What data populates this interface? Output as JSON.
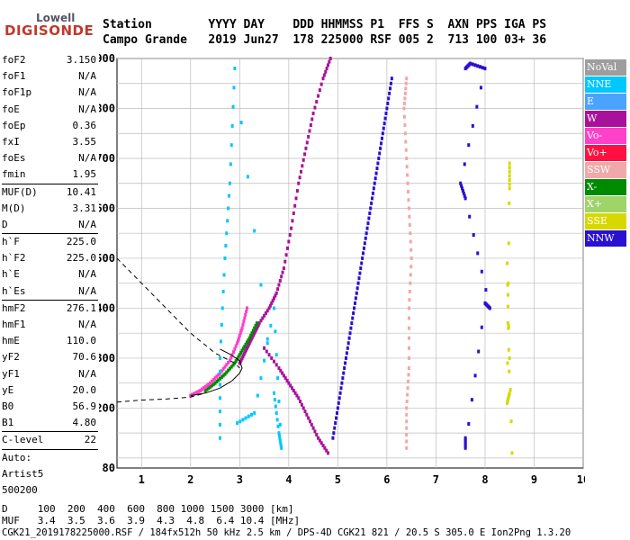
{
  "logo": {
    "line1": "Lowell",
    "line2": "DIGISONDE"
  },
  "header": {
    "labels": "Station        YYYY DAY    DDD HHMMSS P1  FFS S  AXN PPS IGA PS",
    "values": "Campo Grande   2019 Jun27  178 225000 RSF 005 2  713 100 03+ 36"
  },
  "params": [
    {
      "name": "foF2",
      "value": "3.150"
    },
    {
      "name": "foF1",
      "value": "N/A"
    },
    {
      "name": "foF1p",
      "value": "N/A"
    },
    {
      "name": "foE",
      "value": "N/A"
    },
    {
      "name": "foEp",
      "value": "0.36"
    },
    {
      "name": "fxI",
      "value": "3.55"
    },
    {
      "name": "foEs",
      "value": "N/A"
    },
    {
      "name": "fmin",
      "value": "1.95"
    },
    {
      "name": "MUF(D)",
      "value": "10.41"
    },
    {
      "name": "M(D)",
      "value": "3.31"
    },
    {
      "name": "D",
      "value": "N/A"
    },
    {
      "name": "h`F",
      "value": "225.0"
    },
    {
      "name": "h`F2",
      "value": "225.0"
    },
    {
      "name": "h`E",
      "value": "N/A"
    },
    {
      "name": "h`Es",
      "value": "N/A"
    },
    {
      "name": "hmF2",
      "value": "276.1"
    },
    {
      "name": "hmF1",
      "value": "N/A"
    },
    {
      "name": "hmE",
      "value": "110.0"
    },
    {
      "name": "yF2",
      "value": "70.6"
    },
    {
      "name": "yF1",
      "value": "N/A"
    },
    {
      "name": "yE",
      "value": "20.0"
    },
    {
      "name": "B0",
      "value": "56.9"
    },
    {
      "name": "B1",
      "value": "4.80"
    },
    {
      "name": "C-level",
      "value": "22"
    },
    {
      "name": "Auto:",
      "value": ""
    },
    {
      "name": "Artist5",
      "value": ""
    },
    {
      "name": "500200",
      "value": ""
    }
  ],
  "legend": [
    {
      "label": "NoVal",
      "color": "#9e9e9e"
    },
    {
      "label": "NNE",
      "color": "#00c8ff"
    },
    {
      "label": "E",
      "color": "#4aa3ff"
    },
    {
      "label": "W",
      "color": "#a8129a"
    },
    {
      "label": "Vo-",
      "color": "#ff40c8"
    },
    {
      "label": "Vo+",
      "color": "#ff1040"
    },
    {
      "label": "SSW",
      "color": "#f0a8a8"
    },
    {
      "label": "X-",
      "color": "#008a00"
    },
    {
      "label": "X+",
      "color": "#9ed46a"
    },
    {
      "label": "SSE",
      "color": "#d8d800"
    },
    {
      "label": "NNW",
      "color": "#2a10d0"
    }
  ],
  "chart_data": {
    "type": "scatter",
    "xlim": [
      0.5,
      10
    ],
    "ylim": [
      80,
      900
    ],
    "x_ticks": [
      "1",
      "2",
      "3",
      "4",
      "5",
      "6",
      "7",
      "8",
      "9",
      "10"
    ],
    "y_ticks": [
      "80",
      "200",
      "300",
      "400",
      "500",
      "600",
      "700",
      "800",
      "900"
    ],
    "grid": true,
    "traces": [
      {
        "name": "W",
        "color": "#a8129a",
        "points": [
          [
            3.0,
            290
          ],
          [
            3.1,
            310
          ],
          [
            3.2,
            330
          ],
          [
            3.3,
            350
          ],
          [
            3.4,
            370
          ],
          [
            3.6,
            400
          ],
          [
            3.75,
            430
          ],
          [
            3.9,
            480
          ],
          [
            4.05,
            560
          ],
          [
            4.2,
            650
          ],
          [
            4.35,
            720
          ],
          [
            4.5,
            790
          ],
          [
            4.7,
            860
          ],
          [
            4.85,
            900
          ]
        ]
      },
      {
        "name": "NNW",
        "color": "#2a10d0",
        "points": [
          [
            4.9,
            140
          ],
          [
            5.0,
            200
          ],
          [
            5.1,
            260
          ],
          [
            5.2,
            320
          ],
          [
            5.3,
            380
          ],
          [
            5.4,
            440
          ],
          [
            5.5,
            500
          ],
          [
            5.6,
            560
          ],
          [
            5.7,
            620
          ],
          [
            5.8,
            680
          ],
          [
            5.9,
            740
          ],
          [
            6.0,
            800
          ],
          [
            6.1,
            860
          ]
        ]
      },
      {
        "name": "X-",
        "color": "#008a00",
        "points": [
          [
            2.3,
            235
          ],
          [
            2.5,
            250
          ],
          [
            2.7,
            268
          ],
          [
            2.9,
            290
          ],
          [
            3.05,
            315
          ],
          [
            3.2,
            340
          ],
          [
            3.35,
            370
          ]
        ]
      },
      {
        "name": "Vo-",
        "color": "#ff40c8",
        "points": [
          [
            2.0,
            225
          ],
          [
            2.2,
            235
          ],
          [
            2.4,
            250
          ],
          [
            2.6,
            270
          ],
          [
            2.8,
            295
          ],
          [
            2.95,
            330
          ],
          [
            3.05,
            360
          ],
          [
            3.15,
            400
          ]
        ]
      },
      {
        "name": "NNE",
        "color": "#00c8ff",
        "points": [
          [
            2.6,
            140
          ],
          [
            2.6,
            300
          ],
          [
            2.7,
            500
          ],
          [
            2.8,
            650
          ],
          [
            2.9,
            880
          ],
          [
            3.7,
            230
          ],
          [
            3.8,
            150
          ],
          [
            3.85,
            120
          ],
          [
            3.7,
            400
          ],
          [
            3.3,
            190
          ],
          [
            2.95,
            170
          ]
        ]
      },
      {
        "name": "SSW",
        "color": "#f0a8a8",
        "points": [
          [
            6.4,
            120
          ],
          [
            6.4,
            200
          ],
          [
            6.45,
            280
          ],
          [
            6.45,
            400
          ],
          [
            6.5,
            500
          ],
          [
            6.45,
            600
          ],
          [
            6.4,
            700
          ],
          [
            6.35,
            800
          ],
          [
            6.4,
            860
          ]
        ]
      },
      {
        "name": "SSE",
        "color": "#d8d800",
        "points": [
          [
            8.5,
            640
          ],
          [
            8.5,
            690
          ],
          [
            8.45,
            210
          ],
          [
            8.5,
            230
          ],
          [
            8.45,
            490
          ],
          [
            8.55,
            110
          ]
        ]
      },
      {
        "name": "NNW-far",
        "color": "#2a10d0",
        "points": [
          [
            7.6,
            880
          ],
          [
            7.7,
            890
          ],
          [
            8.0,
            880
          ],
          [
            7.5,
            650
          ],
          [
            7.6,
            620
          ],
          [
            8.1,
            400
          ],
          [
            8.0,
            410
          ],
          [
            7.6,
            120
          ],
          [
            7.6,
            140
          ]
        ]
      },
      {
        "name": "W2",
        "color": "#a8129a",
        "points": [
          [
            3.5,
            320
          ],
          [
            3.8,
            280
          ],
          [
            4.0,
            250
          ],
          [
            4.2,
            220
          ],
          [
            4.4,
            180
          ],
          [
            4.6,
            140
          ],
          [
            4.8,
            110
          ]
        ]
      }
    ],
    "lines": [
      {
        "name": "profile-dashed",
        "style": "dashed",
        "points": [
          [
            0.5,
            500
          ],
          [
            1.0,
            450
          ],
          [
            1.5,
            400
          ],
          [
            2.0,
            350
          ],
          [
            2.5,
            310
          ],
          [
            2.9,
            290
          ],
          [
            3.0,
            280
          ]
        ]
      },
      {
        "name": "profile-dashed-low",
        "style": "dashed",
        "points": [
          [
            0.5,
            212
          ],
          [
            1.0,
            216
          ],
          [
            1.5,
            218
          ],
          [
            2.0,
            222
          ],
          [
            2.3,
            230
          ]
        ]
      },
      {
        "name": "profile-solid",
        "style": "solid",
        "points": [
          [
            2.0,
            225
          ],
          [
            2.3,
            230
          ],
          [
            2.6,
            240
          ],
          [
            2.85,
            255
          ],
          [
            3.0,
            270
          ],
          [
            3.05,
            280
          ],
          [
            3.0,
            295
          ],
          [
            2.8,
            308
          ],
          [
            2.6,
            318
          ]
        ]
      }
    ]
  },
  "footer": {
    "d_row": "D     100  200  400  600  800 1000 1500 3000 [km]",
    "muf_row": "MUF   3.4  3.5  3.6  3.9  4.3  4.8  6.4 10.4 [MHz]",
    "info": "CGK21_2019178225000.RSF / 184fx512h 50 kHz 2.5 km / DPS-4D CGK21 821 / 20.5 S 305.0 E Ion2Png 1.3.20"
  }
}
